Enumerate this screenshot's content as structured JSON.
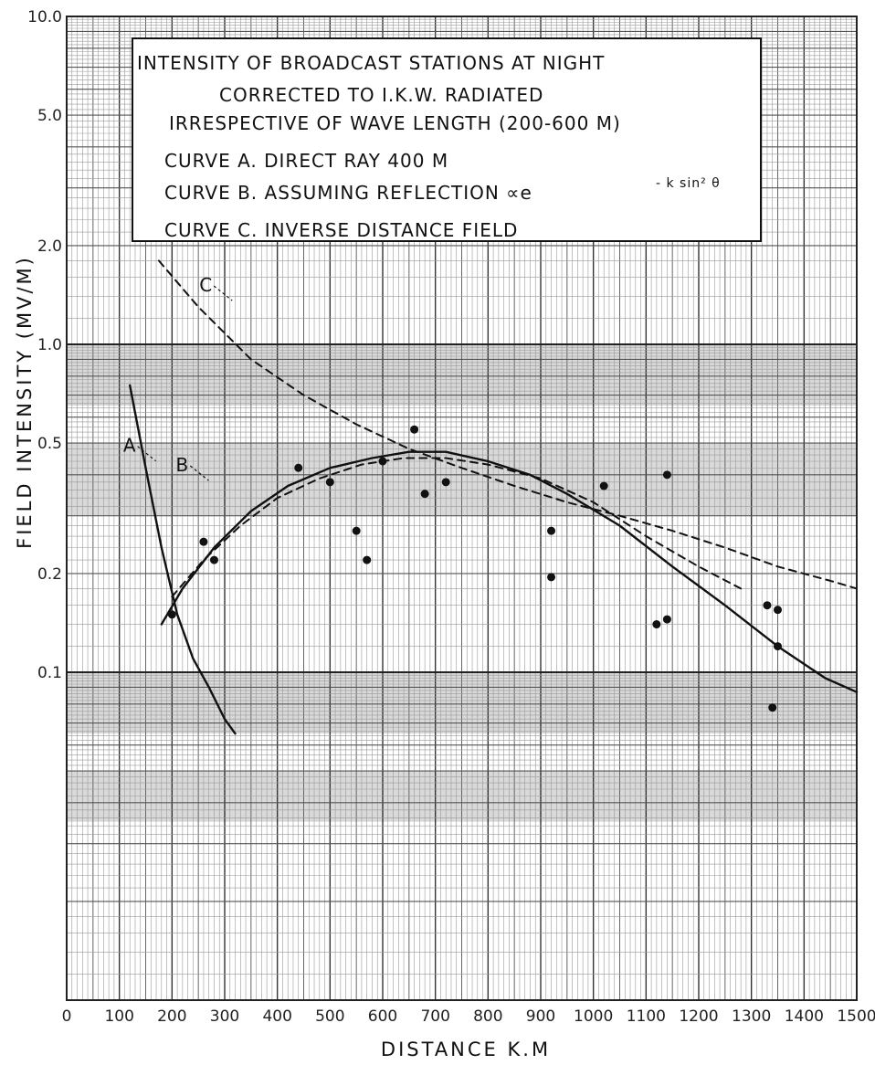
{
  "chart_data": {
    "type": "line",
    "title_lines": [
      "INTENSITY OF BROADCAST STATIONS AT NIGHT",
      "CORRECTED TO I.K.W. RADIATED",
      "IRRESPECTIVE OF WAVE LENGTH (200-600 M)",
      "CURVE A. DIRECT RAY  400 M",
      "CURVE B. ASSUMING REFLECTION ∝e",
      "CURVE C. INVERSE DISTANCE FIELD"
    ],
    "title_formula_sup": "- k sin² θ",
    "xlabel": "DISTANCE  K.M",
    "ylabel": "FIELD INTENSITY (MV/M)",
    "xlim": [
      0,
      1500
    ],
    "ylim": [
      0.01,
      10
    ],
    "yscale": "log",
    "grid": true,
    "x_ticks": [
      "0",
      "100",
      "200",
      "300",
      "400",
      "500",
      "600",
      "700",
      "800",
      "900",
      "1000",
      "1100",
      "1200",
      "1300",
      "1400",
      "1500"
    ],
    "x_tick_values": [
      0,
      100,
      200,
      300,
      400,
      500,
      600,
      700,
      800,
      900,
      1000,
      1100,
      1200,
      1300,
      1400,
      1500
    ],
    "y_ticks": [
      "10.0",
      "5.0",
      "2.0",
      "1.0",
      "0.5",
      "0.2",
      "0.1"
    ],
    "y_tick_values": [
      10,
      5,
      2,
      1,
      0.5,
      0.2,
      0.1
    ],
    "annotations": [
      {
        "text": "A",
        "x": 145,
        "y": 0.47
      },
      {
        "text": "B",
        "x": 245,
        "y": 0.41
      },
      {
        "text": "C",
        "x": 290,
        "y": 1.45
      }
    ],
    "series": [
      {
        "name": "A",
        "style": "solid",
        "x": [
          120,
          150,
          180,
          210,
          240,
          270,
          300,
          320
        ],
        "y": [
          0.75,
          0.42,
          0.24,
          0.15,
          0.11,
          0.09,
          0.072,
          0.065
        ]
      },
      {
        "name": "B",
        "style": "solid",
        "x": [
          180,
          220,
          280,
          350,
          420,
          500,
          580,
          650,
          720,
          800,
          880,
          950,
          1050,
          1150,
          1250,
          1350,
          1440,
          1500
        ],
        "y": [
          0.14,
          0.18,
          0.24,
          0.31,
          0.37,
          0.42,
          0.45,
          0.47,
          0.47,
          0.44,
          0.4,
          0.35,
          0.28,
          0.21,
          0.16,
          0.12,
          0.096,
          0.087
        ]
      },
      {
        "name": "B-dashed",
        "style": "dashed",
        "x": [
          200,
          260,
          330,
          400,
          480,
          560,
          640,
          720,
          800,
          900,
          1000,
          1100,
          1200,
          1280
        ],
        "y": [
          0.17,
          0.22,
          0.28,
          0.34,
          0.39,
          0.43,
          0.45,
          0.45,
          0.43,
          0.39,
          0.33,
          0.26,
          0.21,
          0.18
        ]
      },
      {
        "name": "C",
        "style": "dashed",
        "x": [
          175,
          250,
          350,
          450,
          550,
          650,
          750,
          850,
          950,
          1050,
          1150,
          1250,
          1350,
          1450,
          1500
        ],
        "y": [
          1.8,
          1.3,
          0.9,
          0.7,
          0.57,
          0.48,
          0.42,
          0.37,
          0.33,
          0.3,
          0.27,
          0.24,
          0.21,
          0.19,
          0.18
        ]
      },
      {
        "name": "observations",
        "style": "points",
        "x": [
          200,
          260,
          280,
          440,
          500,
          550,
          570,
          600,
          660,
          680,
          720,
          920,
          920,
          1020,
          1120,
          1140,
          1140,
          1330,
          1350,
          1350,
          1340
        ],
        "y": [
          0.15,
          0.25,
          0.22,
          0.42,
          0.38,
          0.27,
          0.22,
          0.44,
          0.55,
          0.35,
          0.38,
          0.27,
          0.195,
          0.37,
          0.14,
          0.145,
          0.4,
          0.16,
          0.155,
          0.12,
          0.078
        ]
      }
    ]
  }
}
